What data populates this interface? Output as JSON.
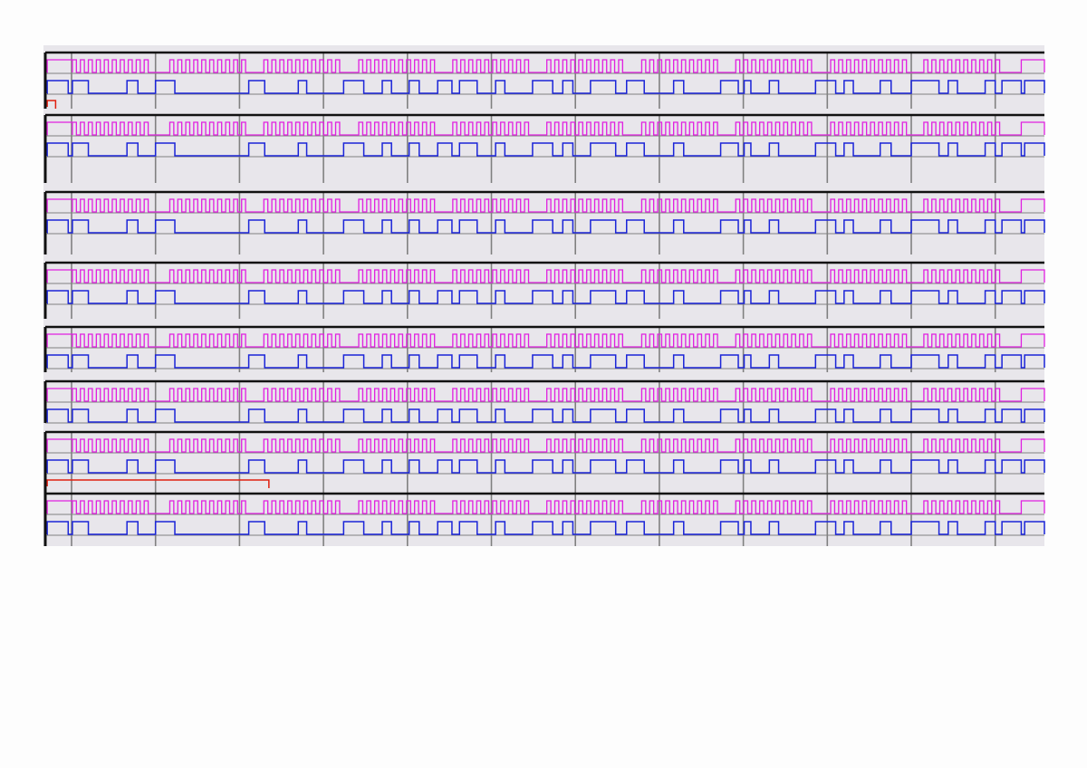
{
  "colors": {
    "background": "#e8e6eb",
    "channel_a": "#e020e0",
    "channel_b": "#1a24d8",
    "channel_c": "#e02010",
    "frame": "#111111",
    "grid": "#808080"
  },
  "time_range_divisions": [
    -0.31,
    11.6
  ],
  "grid_divisions": [
    0,
    1,
    2,
    3,
    4,
    5,
    6,
    7,
    8,
    9,
    10,
    11
  ],
  "channel_a": {
    "initial_high": [
      -0.29,
      0.01
    ],
    "burst_starts": [
      0.01,
      1.17,
      2.29,
      3.42,
      4.54,
      5.66,
      6.79,
      7.91,
      9.04,
      10.15
    ],
    "pulses_per_burst": 10,
    "pulse_period": 0.095,
    "duty": 0.5,
    "final_high_from": 11.31
  },
  "channel_b_pulses": [
    [
      -0.29,
      -0.04
    ],
    [
      0.01,
      0.2
    ],
    [
      0.66,
      0.79
    ],
    [
      1.0,
      1.23
    ],
    [
      2.11,
      2.3
    ],
    [
      2.7,
      2.8
    ],
    [
      3.24,
      3.48
    ],
    [
      3.7,
      3.81
    ],
    [
      4.02,
      4.14
    ],
    [
      4.36,
      4.53
    ],
    [
      4.62,
      4.83
    ],
    [
      5.05,
      5.16
    ],
    [
      5.49,
      5.73
    ],
    [
      5.85,
      5.97
    ],
    [
      6.18,
      6.48
    ],
    [
      6.61,
      6.82
    ],
    [
      7.17,
      7.29
    ],
    [
      7.73,
      7.94
    ],
    [
      8.01,
      8.09
    ],
    [
      8.31,
      8.42
    ],
    [
      8.86,
      9.1
    ],
    [
      9.2,
      9.31
    ],
    [
      9.63,
      9.76
    ],
    [
      10.0,
      10.33
    ],
    [
      10.44,
      10.55
    ],
    [
      10.88,
      11.0
    ],
    [
      11.08,
      11.31
    ],
    [
      11.35,
      11.7
    ]
  ],
  "panels": [
    {
      "channel_c_high": [
        -0.29,
        -0.19
      ]
    },
    {},
    {},
    {},
    {},
    {},
    {
      "channel_c_high": [
        -0.29,
        2.35
      ]
    },
    {}
  ]
}
